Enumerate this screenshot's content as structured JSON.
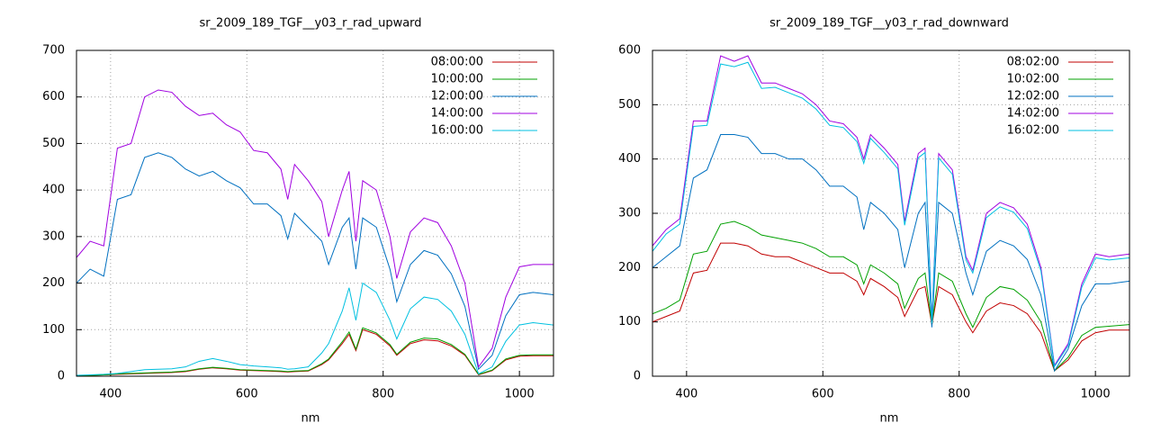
{
  "chart_data": [
    {
      "type": "line",
      "title": "sr_2009_189_TGF__y03_r_rad_upward",
      "x_label": "nm",
      "xlim": [
        350,
        1050
      ],
      "xticks": [
        400,
        600,
        800,
        1000
      ],
      "ylim": [
        0,
        700
      ],
      "yticks": [
        0,
        100,
        200,
        300,
        400,
        500,
        600,
        700
      ],
      "grid": true,
      "legend": "top-right",
      "x": [
        350,
        370,
        390,
        410,
        430,
        450,
        470,
        490,
        510,
        530,
        550,
        570,
        590,
        610,
        630,
        650,
        660,
        670,
        690,
        710,
        720,
        740,
        750,
        760,
        770,
        790,
        810,
        820,
        840,
        860,
        880,
        900,
        920,
        940,
        960,
        980,
        1000,
        1020,
        1050
      ],
      "series": [
        {
          "name": "08:00:00",
          "color": "#c00000",
          "values": [
            1,
            2,
            3,
            4,
            5,
            6,
            7,
            8,
            10,
            15,
            18,
            16,
            13,
            12,
            11,
            10,
            9,
            10,
            11,
            25,
            35,
            70,
            90,
            55,
            100,
            90,
            65,
            45,
            70,
            78,
            76,
            65,
            45,
            3,
            12,
            35,
            43,
            44,
            44
          ]
        },
        {
          "name": "10:00:00",
          "color": "#00a000",
          "values": [
            2,
            2,
            3,
            5,
            6,
            7,
            8,
            9,
            11,
            16,
            19,
            17,
            14,
            13,
            12,
            11,
            10,
            11,
            12,
            27,
            37,
            74,
            95,
            58,
            104,
            93,
            68,
            47,
            73,
            82,
            80,
            68,
            47,
            4,
            13,
            37,
            45,
            46,
            46
          ]
        },
        {
          "name": "12:00:00",
          "color": "#0070c0",
          "values": [
            200,
            230,
            215,
            380,
            390,
            470,
            480,
            470,
            445,
            430,
            440,
            420,
            405,
            370,
            370,
            345,
            295,
            350,
            320,
            290,
            240,
            320,
            340,
            230,
            340,
            320,
            230,
            160,
            240,
            270,
            260,
            220,
            150,
            15,
            45,
            130,
            175,
            180,
            175
          ]
        },
        {
          "name": "14:00:00",
          "color": "#a000e0",
          "values": [
            255,
            290,
            280,
            490,
            500,
            600,
            615,
            610,
            580,
            560,
            565,
            540,
            525,
            485,
            480,
            445,
            380,
            455,
            420,
            375,
            300,
            400,
            440,
            290,
            420,
            400,
            300,
            210,
            310,
            340,
            330,
            280,
            200,
            20,
            60,
            170,
            235,
            240,
            240
          ]
        },
        {
          "name": "16:00:00",
          "color": "#00c0e0",
          "values": [
            2,
            3,
            4,
            6,
            10,
            14,
            15,
            16,
            20,
            32,
            38,
            32,
            25,
            22,
            20,
            18,
            15,
            16,
            20,
            50,
            70,
            140,
            190,
            120,
            200,
            180,
            120,
            80,
            145,
            170,
            165,
            140,
            90,
            5,
            20,
            75,
            110,
            115,
            110
          ]
        }
      ]
    },
    {
      "type": "line",
      "title": "sr_2009_189_TGF__y03_r_rad_downward",
      "x_label": "nm",
      "xlim": [
        350,
        1050
      ],
      "xticks": [
        400,
        600,
        800,
        1000
      ],
      "ylim": [
        0,
        600
      ],
      "yticks": [
        0,
        100,
        200,
        300,
        400,
        500,
        600
      ],
      "grid": true,
      "legend": "top-right",
      "x": [
        350,
        370,
        390,
        410,
        430,
        450,
        470,
        490,
        510,
        530,
        550,
        570,
        590,
        610,
        630,
        650,
        660,
        670,
        690,
        710,
        720,
        740,
        750,
        760,
        770,
        790,
        810,
        820,
        840,
        860,
        880,
        900,
        920,
        940,
        960,
        980,
        1000,
        1020,
        1050
      ],
      "series": [
        {
          "name": "08:02:00",
          "color": "#c00000",
          "values": [
            100,
            110,
            120,
            190,
            195,
            245,
            245,
            240,
            225,
            220,
            220,
            210,
            200,
            190,
            190,
            175,
            150,
            180,
            165,
            145,
            110,
            160,
            165,
            95,
            165,
            150,
            100,
            80,
            120,
            135,
            130,
            115,
            80,
            10,
            30,
            65,
            80,
            85,
            85
          ]
        },
        {
          "name": "10:02:00",
          "color": "#00a000",
          "values": [
            115,
            125,
            140,
            225,
            230,
            280,
            285,
            275,
            260,
            255,
            250,
            245,
            235,
            220,
            220,
            205,
            170,
            205,
            190,
            170,
            125,
            180,
            190,
            95,
            190,
            175,
            115,
            90,
            145,
            165,
            160,
            140,
            100,
            10,
            35,
            75,
            90,
            92,
            95
          ]
        },
        {
          "name": "12:02:00",
          "color": "#0070c0",
          "values": [
            200,
            220,
            240,
            365,
            380,
            445,
            445,
            440,
            410,
            410,
            400,
            400,
            380,
            350,
            350,
            330,
            270,
            320,
            300,
            270,
            200,
            300,
            320,
            90,
            320,
            300,
            190,
            150,
            230,
            250,
            240,
            215,
            150,
            10,
            50,
            130,
            170,
            170,
            175
          ]
        },
        {
          "name": "14:02:00",
          "color": "#a000e0",
          "values": [
            240,
            270,
            290,
            470,
            470,
            590,
            580,
            590,
            540,
            540,
            530,
            520,
            500,
            470,
            465,
            440,
            400,
            445,
            420,
            390,
            285,
            410,
            420,
            100,
            410,
            380,
            220,
            195,
            300,
            320,
            310,
            280,
            200,
            20,
            60,
            170,
            225,
            220,
            225
          ]
        },
        {
          "name": "16:02:00",
          "color": "#00c0e0",
          "values": [
            230,
            262,
            280,
            460,
            462,
            575,
            570,
            578,
            530,
            532,
            522,
            512,
            492,
            462,
            458,
            432,
            392,
            438,
            412,
            382,
            278,
            402,
            412,
            98,
            402,
            372,
            214,
            190,
            292,
            312,
            302,
            272,
            194,
            18,
            56,
            164,
            218,
            214,
            218
          ]
        }
      ]
    }
  ]
}
